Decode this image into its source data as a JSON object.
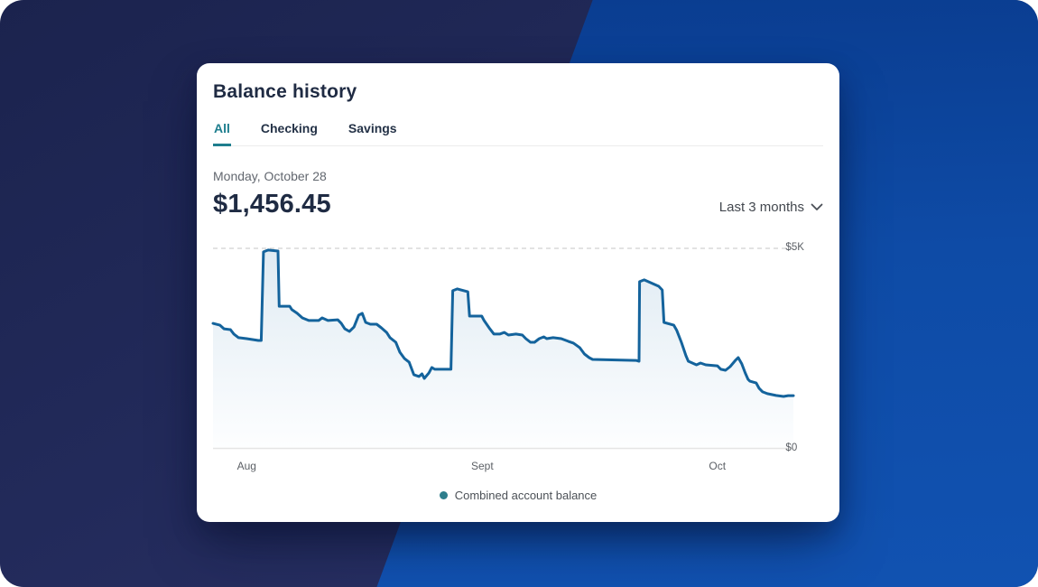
{
  "card": {
    "title": "Balance history",
    "tabs": [
      {
        "label": "All",
        "active": true
      },
      {
        "label": "Checking",
        "active": false
      },
      {
        "label": "Savings",
        "active": false
      }
    ],
    "date_label": "Monday, October 28",
    "balance": "$1,456.45",
    "range_selector": {
      "label": "Last 3 months",
      "icon": "chevron-down-icon"
    },
    "legend": {
      "label": "Combined account balance"
    }
  },
  "theme": {
    "accent_teal": "#1E7E8E",
    "line_blue": "#14639C",
    "navy_text": "#1F2B43",
    "bg_dark_navy": "#222A5A",
    "bg_bright_blue": "#0E4BA6"
  },
  "chart_data": {
    "type": "area",
    "title": "Balance history",
    "series_name": "Combined account balance",
    "ylabel": "",
    "xlabel": "",
    "y_max": 5000,
    "y_min": 0,
    "y_ticks": [
      "$5K",
      "$0"
    ],
    "grid": "dashed top gridline at $5K, solid baseline at $0",
    "legend_position": "bottom-center",
    "x_ticks": [
      {
        "label": "Aug",
        "fx": 0.058
      },
      {
        "label": "Sept",
        "fx": 0.464
      },
      {
        "label": "Oct",
        "fx": 0.869
      }
    ],
    "points": [
      [
        0.0,
        3115
      ],
      [
        0.012,
        3070
      ],
      [
        0.019,
        2980
      ],
      [
        0.03,
        2960
      ],
      [
        0.036,
        2850
      ],
      [
        0.044,
        2760
      ],
      [
        0.058,
        2735
      ],
      [
        0.078,
        2690
      ],
      [
        0.083,
        2690
      ],
      [
        0.087,
        4890
      ],
      [
        0.095,
        4935
      ],
      [
        0.112,
        4910
      ],
      [
        0.114,
        3540
      ],
      [
        0.132,
        3540
      ],
      [
        0.136,
        3455
      ],
      [
        0.145,
        3365
      ],
      [
        0.154,
        3250
      ],
      [
        0.165,
        3185
      ],
      [
        0.182,
        3185
      ],
      [
        0.188,
        3250
      ],
      [
        0.198,
        3185
      ],
      [
        0.215,
        3205
      ],
      [
        0.221,
        3115
      ],
      [
        0.227,
        2980
      ],
      [
        0.235,
        2915
      ],
      [
        0.243,
        3025
      ],
      [
        0.251,
        3320
      ],
      [
        0.257,
        3365
      ],
      [
        0.263,
        3140
      ],
      [
        0.271,
        3095
      ],
      [
        0.282,
        3095
      ],
      [
        0.29,
        3005
      ],
      [
        0.299,
        2890
      ],
      [
        0.305,
        2760
      ],
      [
        0.315,
        2645
      ],
      [
        0.322,
        2400
      ],
      [
        0.33,
        2240
      ],
      [
        0.338,
        2150
      ],
      [
        0.346,
        1840
      ],
      [
        0.355,
        1795
      ],
      [
        0.36,
        1860
      ],
      [
        0.364,
        1750
      ],
      [
        0.372,
        1885
      ],
      [
        0.377,
        2020
      ],
      [
        0.382,
        1975
      ],
      [
        0.407,
        1975
      ],
      [
        0.41,
        1975
      ],
      [
        0.413,
        3925
      ],
      [
        0.421,
        3970
      ],
      [
        0.439,
        3900
      ],
      [
        0.442,
        3295
      ],
      [
        0.463,
        3295
      ],
      [
        0.467,
        3185
      ],
      [
        0.477,
        2980
      ],
      [
        0.484,
        2850
      ],
      [
        0.494,
        2850
      ],
      [
        0.502,
        2890
      ],
      [
        0.509,
        2825
      ],
      [
        0.522,
        2850
      ],
      [
        0.533,
        2825
      ],
      [
        0.539,
        2735
      ],
      [
        0.547,
        2645
      ],
      [
        0.554,
        2645
      ],
      [
        0.562,
        2735
      ],
      [
        0.57,
        2780
      ],
      [
        0.575,
        2735
      ],
      [
        0.586,
        2760
      ],
      [
        0.6,
        2735
      ],
      [
        0.612,
        2670
      ],
      [
        0.621,
        2625
      ],
      [
        0.632,
        2510
      ],
      [
        0.64,
        2355
      ],
      [
        0.648,
        2265
      ],
      [
        0.654,
        2220
      ],
      [
        0.729,
        2195
      ],
      [
        0.734,
        2175
      ],
      [
        0.735,
        4150
      ],
      [
        0.743,
        4195
      ],
      [
        0.768,
        4035
      ],
      [
        0.774,
        3945
      ],
      [
        0.777,
        3140
      ],
      [
        0.794,
        3070
      ],
      [
        0.799,
        2940
      ],
      [
        0.807,
        2645
      ],
      [
        0.815,
        2310
      ],
      [
        0.819,
        2175
      ],
      [
        0.826,
        2130
      ],
      [
        0.833,
        2085
      ],
      [
        0.84,
        2130
      ],
      [
        0.849,
        2085
      ],
      [
        0.869,
        2060
      ],
      [
        0.875,
        1975
      ],
      [
        0.883,
        1950
      ],
      [
        0.891,
        2040
      ],
      [
        0.9,
        2195
      ],
      [
        0.905,
        2265
      ],
      [
        0.911,
        2110
      ],
      [
        0.917,
        1885
      ],
      [
        0.922,
        1725
      ],
      [
        0.925,
        1680
      ],
      [
        0.936,
        1635
      ],
      [
        0.941,
        1500
      ],
      [
        0.947,
        1415
      ],
      [
        0.955,
        1370
      ],
      [
        0.97,
        1325
      ],
      [
        0.983,
        1300
      ],
      [
        0.991,
        1320
      ],
      [
        1.0,
        1320
      ]
    ]
  }
}
